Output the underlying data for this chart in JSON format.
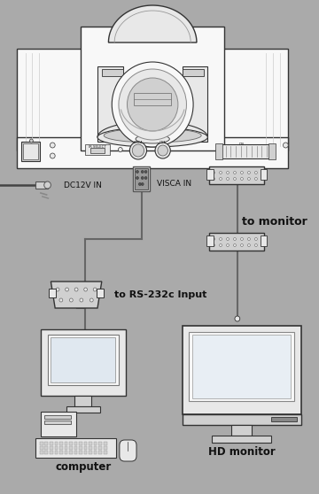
{
  "background_color": "#aaaaaa",
  "text_color": "#111111",
  "line_color": "#666666",
  "white_fill": "#f8f8f8",
  "light_fill": "#e8e8e8",
  "mid_fill": "#d0d0d0",
  "dark_fill": "#888888",
  "edge_color": "#333333",
  "labels": {
    "dc12v": "DC12V IN",
    "visca_in": "VISCA IN",
    "rs232c": "to RS-232c Input",
    "to_monitor": "to monitor",
    "computer": "computer",
    "hd_monitor": "HD monitor"
  },
  "font_family": "DejaVu Sans"
}
